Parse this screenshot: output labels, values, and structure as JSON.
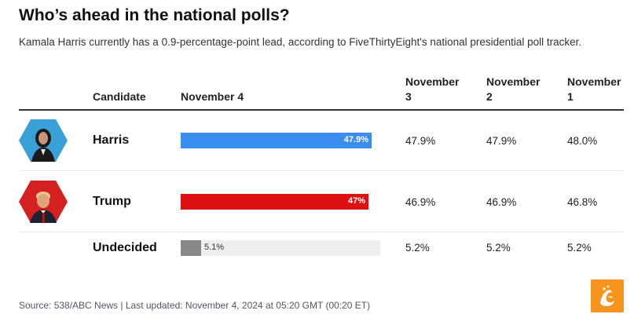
{
  "title": "Who’s ahead in the national polls?",
  "subtitle": "Kamala Harris currently has a 0.9-percentage-point lead, according to FiveThirtyEight's national presidential poll tracker.",
  "columns": {
    "candidate": "Candidate",
    "nov4": "November 4",
    "nov3": "November 3",
    "nov2": "November 2",
    "nov1": "November 1"
  },
  "rows": [
    {
      "name": "Harris",
      "nov4_label": "47.9%",
      "nov3": "47.9%",
      "nov2": "47.9%",
      "nov1": "48.0%",
      "color": "#3b8ef0"
    },
    {
      "name": "Trump",
      "nov4_label": "47%",
      "nov3": "46.9%",
      "nov2": "46.9%",
      "nov1": "46.8%",
      "color": "#dd1111"
    },
    {
      "name": "Undecided",
      "nov4_label": "5.1%",
      "nov3": "5.2%",
      "nov2": "5.2%",
      "nov1": "5.2%",
      "color": "#888888"
    }
  ],
  "source": "Source: 538/ABC News | Last updated: November 4, 2024 at 05:20 GMT (00:20 ET)",
  "chart_data": {
    "type": "bar",
    "title": "Who’s ahead in the national polls?",
    "categories": [
      "Harris",
      "Trump",
      "Undecided"
    ],
    "values": [
      47.9,
      47.0,
      5.1
    ],
    "value_labels": [
      "47.9%",
      "47%",
      "5.1%"
    ],
    "xlim": [
      0,
      50
    ],
    "table": {
      "columns": [
        "November 3",
        "November 2",
        "November 1"
      ],
      "Harris": [
        47.9,
        47.9,
        48.0
      ],
      "Trump": [
        46.9,
        46.9,
        46.8
      ],
      "Undecided": [
        5.2,
        5.2,
        5.2
      ]
    }
  }
}
